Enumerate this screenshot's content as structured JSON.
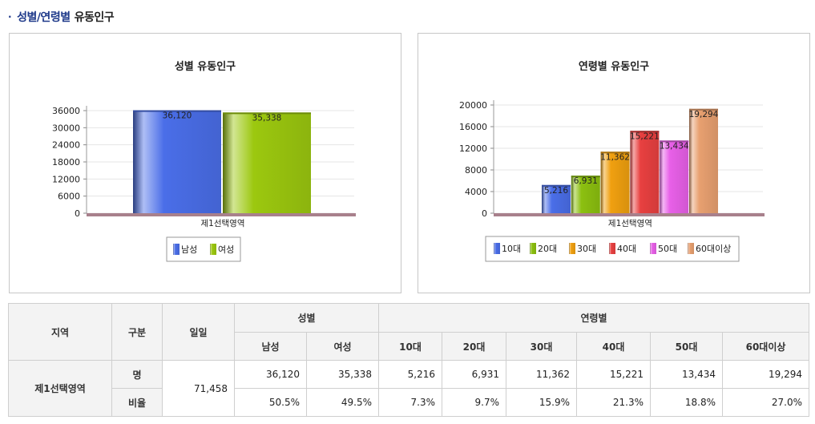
{
  "heading": {
    "bullet": "·",
    "highlight": "성별/연령별",
    "rest": "유동인구"
  },
  "chart_data": [
    {
      "type": "bar",
      "title": "성별 유동인구",
      "categories": [
        "제1선택영역"
      ],
      "series": [
        {
          "name": "남성",
          "values": [
            36120
          ],
          "label": "36,120",
          "color": "#4a6ee8"
        },
        {
          "name": "여성",
          "values": [
            35338
          ],
          "label": "35,338",
          "color": "#9cc80f"
        }
      ],
      "yticks": [
        "0",
        "6000",
        "12000",
        "18000",
        "24000",
        "30000",
        "36000"
      ],
      "ylim": [
        0,
        36000
      ],
      "grid": true,
      "legend": "bottom"
    },
    {
      "type": "bar",
      "title": "연령별 유동인구",
      "categories": [
        "제1선택영역"
      ],
      "series": [
        {
          "name": "10대",
          "values": [
            5216
          ],
          "label": "5,216",
          "color": "#4a6ee8"
        },
        {
          "name": "20대",
          "values": [
            6931
          ],
          "label": "6,931",
          "color": "#8cc010"
        },
        {
          "name": "30대",
          "values": [
            11362
          ],
          "label": "11,362",
          "color": "#f0a010"
        },
        {
          "name": "40대",
          "values": [
            15221
          ],
          "label": "15,221",
          "color": "#e84040"
        },
        {
          "name": "50대",
          "values": [
            13434
          ],
          "label": "13,434",
          "color": "#e860e8"
        },
        {
          "name": "60대이상",
          "values": [
            19294
          ],
          "label": "19,294",
          "color": "#e8a070"
        }
      ],
      "yticks": [
        "0",
        "4000",
        "8000",
        "12000",
        "16000",
        "20000"
      ],
      "ylim": [
        0,
        20000
      ],
      "grid": true,
      "legend": "bottom"
    }
  ],
  "table": {
    "headers": {
      "region": "지역",
      "type": "구분",
      "daily": "일일",
      "gender": "성별",
      "age": "연령별",
      "male": "남성",
      "female": "여성",
      "a10": "10대",
      "a20": "20대",
      "a30": "30대",
      "a40": "40대",
      "a50": "50대",
      "a60": "60대이상"
    },
    "region": "제1선택영역",
    "daily": "71,458",
    "rows": [
      {
        "label": "명",
        "values": [
          "36,120",
          "35,338",
          "5,216",
          "6,931",
          "11,362",
          "15,221",
          "13,434",
          "19,294"
        ]
      },
      {
        "label": "비율",
        "values": [
          "50.5%",
          "49.5%",
          "7.3%",
          "9.7%",
          "15.9%",
          "21.3%",
          "18.8%",
          "27.0%"
        ]
      }
    ]
  }
}
